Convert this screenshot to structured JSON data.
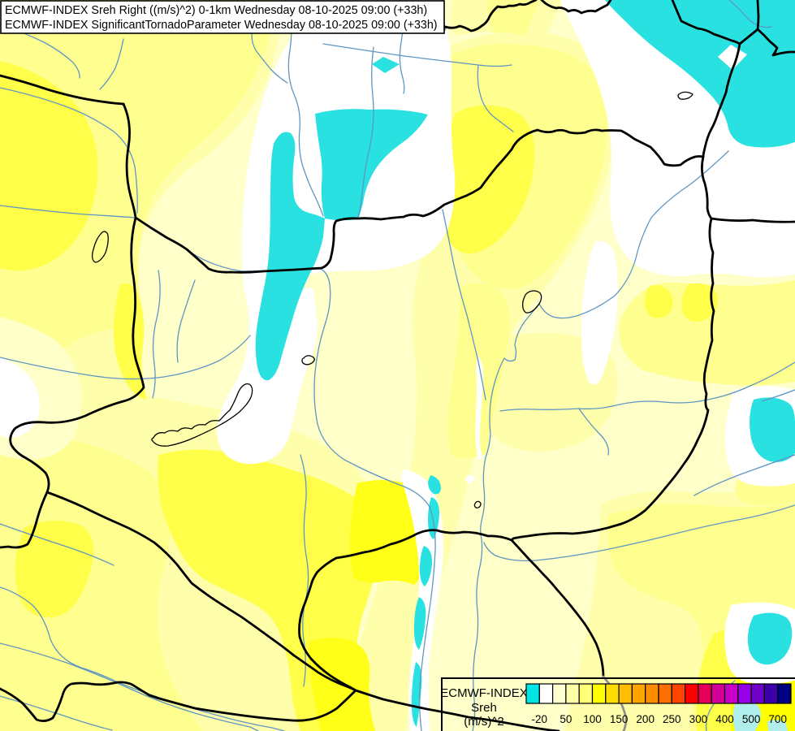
{
  "title_box": {
    "line1": "ECMWF-INDEX Sreh Right ((m/s)^2) 0-1km Wednesday 08-10-2025 09:00 (+33h)",
    "line2": "ECMWF-INDEX SignificantTornadoParameter Wednesday 08-10-2025 09:00 (+33h)"
  },
  "legend": {
    "title": "ECMWF-INDEX",
    "parameter": "Sreh",
    "unit": "(m/s)^2",
    "ticks": [
      "-20",
      "50",
      "100",
      "150",
      "200",
      "250",
      "300",
      "400",
      "500",
      "700"
    ],
    "colors": [
      "#00E6E6",
      "#FFFFFF",
      "#FFFFD2",
      "#FFFFAA",
      "#FFFF78",
      "#FFFF00",
      "#FFDC00",
      "#FFBE00",
      "#FFA500",
      "#FF8C00",
      "#FF6E00",
      "#FF4600",
      "#FF0000",
      "#E6005A",
      "#D20096",
      "#C800C8",
      "#9600E6",
      "#6E00C8",
      "#3C00AA",
      "#000082"
    ]
  },
  "map_palette": {
    "base_cream": "#FFFFC9",
    "pale_yellow": "#FFFFAB",
    "medium_yellow": "#FFFF8F",
    "bright_yellow": "#FFFF4A",
    "brightest_yellow": "#FFFF17",
    "white_region": "#FFFFFF",
    "cyan_region": "#29E1E1",
    "pale_cyan_region": "#B0EEEC",
    "river_blue": "#5E96C3",
    "border_black": "#000000",
    "border_gray": "#8F8F8F"
  }
}
